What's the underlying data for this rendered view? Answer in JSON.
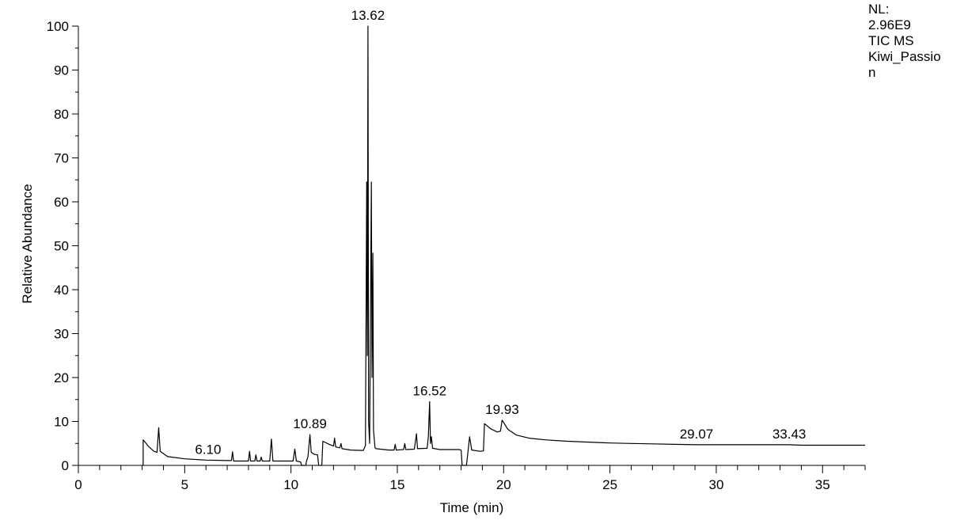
{
  "chart_data": {
    "type": "line",
    "xlabel": "Time (min)",
    "ylabel": "Relative Abundance",
    "xlim": [
      0,
      37
    ],
    "ylim": [
      0,
      100
    ],
    "xticks": [
      0,
      5,
      10,
      15,
      20,
      25,
      30,
      35
    ],
    "yticks": [
      0,
      10,
      20,
      30,
      40,
      50,
      60,
      70,
      80,
      90,
      100
    ],
    "info": [
      "NL:",
      "2.96E9",
      "TIC  MS",
      "Kiwi_Passio",
      "n"
    ],
    "peak_labels": [
      {
        "x": 6.1,
        "y": 1.2,
        "text": "6.10"
      },
      {
        "x": 10.89,
        "y": 7.0,
        "text": "10.89"
      },
      {
        "x": 13.62,
        "y": 100,
        "text": "13.62"
      },
      {
        "x": 16.52,
        "y": 14.5,
        "text": "16.52"
      },
      {
        "x": 19.93,
        "y": 10.3,
        "text": "19.93"
      },
      {
        "x": 29.07,
        "y": 4.7,
        "text": "29.07"
      },
      {
        "x": 33.43,
        "y": 4.7,
        "text": "33.43"
      }
    ],
    "series": [
      {
        "color": "#000000",
        "points": [
          [
            3.05,
            0
          ],
          [
            3.05,
            5.8
          ],
          [
            3.3,
            4.3
          ],
          [
            3.55,
            3.2
          ],
          [
            3.7,
            3.0
          ],
          [
            3.78,
            8.6
          ],
          [
            3.85,
            3.2
          ],
          [
            4.2,
            2.0
          ],
          [
            5.0,
            1.5
          ],
          [
            6.0,
            1.2
          ],
          [
            7.0,
            1.1
          ],
          [
            7.2,
            1.1
          ],
          [
            7.25,
            3.1
          ],
          [
            7.3,
            1.0
          ],
          [
            8.0,
            1.0
          ],
          [
            8.05,
            3.2
          ],
          [
            8.1,
            1.0
          ],
          [
            8.3,
            1.0
          ],
          [
            8.35,
            2.4
          ],
          [
            8.4,
            1.0
          ],
          [
            8.55,
            1.0
          ],
          [
            8.6,
            1.9
          ],
          [
            8.65,
            1.0
          ],
          [
            9.0,
            1.0
          ],
          [
            9.08,
            6.0
          ],
          [
            9.15,
            1.0
          ],
          [
            10.1,
            1.0
          ],
          [
            10.18,
            3.7
          ],
          [
            10.25,
            1.0
          ],
          [
            10.45,
            0.8
          ],
          [
            10.5,
            0
          ],
          [
            10.7,
            0
          ],
          [
            10.72,
            0.8
          ],
          [
            10.8,
            2.0
          ],
          [
            10.89,
            7.0
          ],
          [
            10.95,
            3.0
          ],
          [
            11.1,
            2.5
          ],
          [
            11.25,
            2.4
          ],
          [
            11.3,
            0
          ],
          [
            11.45,
            0
          ],
          [
            11.5,
            5.5
          ],
          [
            11.8,
            4.8
          ],
          [
            12.0,
            4.4
          ],
          [
            12.05,
            6.2
          ],
          [
            12.1,
            4.2
          ],
          [
            12.3,
            4.0
          ],
          [
            12.35,
            5.0
          ],
          [
            12.4,
            3.8
          ],
          [
            12.8,
            3.5
          ],
          [
            13.4,
            3.4
          ],
          [
            13.5,
            4.5
          ],
          [
            13.56,
            64.5
          ],
          [
            13.59,
            25.0
          ],
          [
            13.62,
            100
          ],
          [
            13.65,
            10.0
          ],
          [
            13.7,
            5.0
          ],
          [
            13.78,
            64.5
          ],
          [
            13.81,
            20.0
          ],
          [
            13.85,
            48.3
          ],
          [
            13.88,
            8.0
          ],
          [
            13.95,
            4.0
          ],
          [
            14.0,
            3.8
          ],
          [
            14.6,
            3.5
          ],
          [
            14.85,
            3.5
          ],
          [
            14.9,
            4.8
          ],
          [
            14.95,
            3.5
          ],
          [
            15.3,
            3.6
          ],
          [
            15.35,
            5.0
          ],
          [
            15.4,
            3.6
          ],
          [
            15.8,
            3.7
          ],
          [
            15.9,
            7.2
          ],
          [
            15.95,
            3.8
          ],
          [
            16.4,
            3.9
          ],
          [
            16.46,
            6.5
          ],
          [
            16.52,
            14.5
          ],
          [
            16.56,
            5.0
          ],
          [
            16.6,
            6.5
          ],
          [
            16.66,
            3.9
          ],
          [
            17.0,
            3.6
          ],
          [
            17.9,
            3.6
          ],
          [
            18.0,
            3.5
          ],
          [
            18.05,
            0
          ],
          [
            18.25,
            0
          ],
          [
            18.3,
            2.0
          ],
          [
            18.4,
            6.5
          ],
          [
            18.5,
            3.5
          ],
          [
            18.9,
            3.2
          ],
          [
            19.05,
            3.3
          ],
          [
            19.1,
            9.5
          ],
          [
            19.4,
            8.3
          ],
          [
            19.7,
            7.6
          ],
          [
            19.85,
            7.8
          ],
          [
            19.93,
            10.3
          ],
          [
            20.2,
            8.2
          ],
          [
            20.6,
            6.9
          ],
          [
            21.2,
            6.2
          ],
          [
            22.0,
            5.8
          ],
          [
            23.0,
            5.5
          ],
          [
            24.0,
            5.3
          ],
          [
            25.0,
            5.1
          ],
          [
            26.0,
            5.0
          ],
          [
            27.0,
            4.9
          ],
          [
            28.0,
            4.8
          ],
          [
            29.07,
            4.7
          ],
          [
            30.0,
            4.7
          ],
          [
            31.0,
            4.7
          ],
          [
            32.0,
            4.7
          ],
          [
            33.43,
            4.7
          ],
          [
            34.0,
            4.6
          ],
          [
            35.0,
            4.6
          ],
          [
            36.0,
            4.6
          ],
          [
            37.0,
            4.6
          ]
        ]
      }
    ]
  }
}
